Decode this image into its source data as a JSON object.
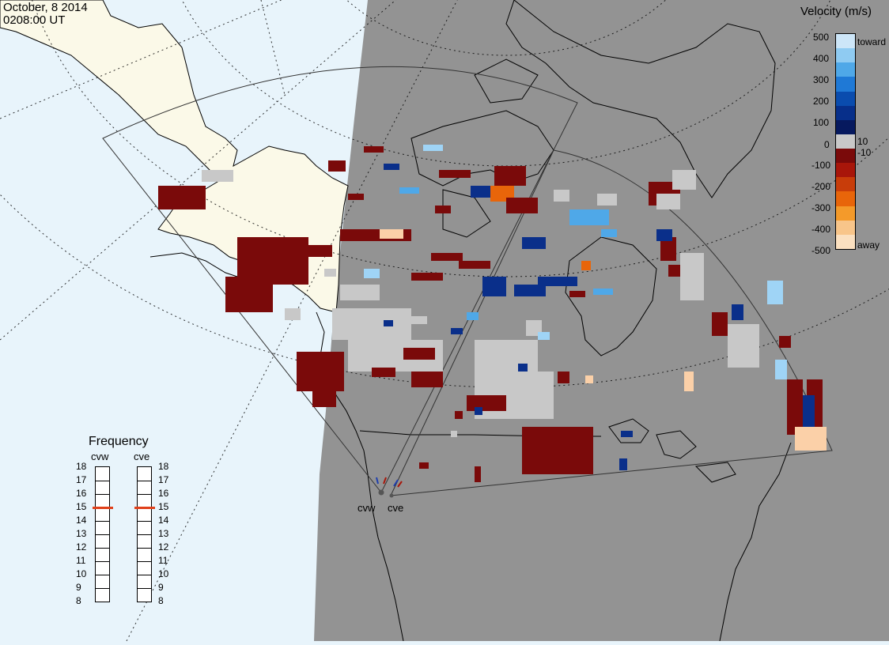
{
  "header": {
    "date": "October, 8 2014",
    "time": "0208:00 UT"
  },
  "velocity_scale": {
    "title": "Velocity (m/s)",
    "toward_label": "toward",
    "away_label": "away",
    "ticks": [
      "500",
      "400",
      "300",
      "200",
      "100",
      "10",
      "0",
      "-10",
      "-100",
      "-200",
      "-300",
      "-400",
      "-500"
    ],
    "colors": [
      "#cde6f8",
      "#8fcbf2",
      "#4fa8e8",
      "#1f79d6",
      "#0a4cae",
      "#072f8a",
      "#06195e",
      "#c8c8c8",
      "#7a0a0a",
      "#a8160a",
      "#c83d0a",
      "#e8650a",
      "#f49a2a",
      "#f8c58a",
      "#fbe0c0"
    ]
  },
  "frequency_panel": {
    "title": "Frequency",
    "radars": [
      "cvw",
      "cve"
    ],
    "ticks": [
      "18",
      "17",
      "16",
      "15",
      "14",
      "13",
      "12",
      "11",
      "10",
      "9",
      "8"
    ],
    "cvw_mhz": 15,
    "cve_mhz": 15,
    "marker_color": "#e0401a"
  },
  "radars": {
    "site_labels": [
      "cvw",
      "cve"
    ]
  },
  "map_colors": {
    "ocean": "#e8f4fb",
    "land_day": "#fbf9e8",
    "night": "#939393",
    "coast": "#000000",
    "ground_scatter": "#c8c8c8"
  }
}
